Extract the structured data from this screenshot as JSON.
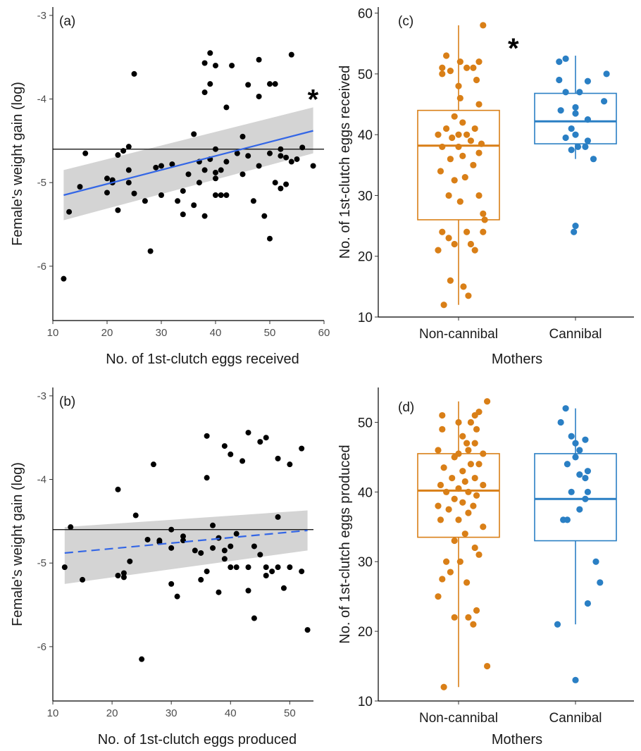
{
  "chart_data": [
    {
      "panel": "(a)",
      "type": "scatter",
      "xlabel": "No. of 1st-clutch eggs received",
      "ylabel": "Female's weight gain (log)",
      "xlim": [
        10,
        60
      ],
      "ylim": [
        -6.65,
        -2.9
      ],
      "xticks": [
        10,
        20,
        30,
        40,
        50,
        60
      ],
      "yticks": [
        -6,
        -5,
        -4,
        -3
      ],
      "hline": -4.6,
      "fit": {
        "x": [
          12,
          58
        ],
        "y": [
          -5.15,
          -4.38
        ],
        "ci_low": [
          -5.45,
          -4.65
        ],
        "ci_high": [
          -4.85,
          -4.1
        ],
        "dashed": false
      },
      "significance": "*",
      "points": [
        [
          12,
          -6.15
        ],
        [
          13,
          -5.35
        ],
        [
          15,
          -5.05
        ],
        [
          16,
          -4.65
        ],
        [
          20,
          -4.95
        ],
        [
          20,
          -5.12
        ],
        [
          21,
          -5.0
        ],
        [
          21,
          -4.97
        ],
        [
          22,
          -5.33
        ],
        [
          22,
          -4.67
        ],
        [
          23,
          -4.62
        ],
        [
          24,
          -4.57
        ],
        [
          24,
          -4.85
        ],
        [
          24,
          -5.0
        ],
        [
          25,
          -3.7
        ],
        [
          25,
          -5.13
        ],
        [
          27,
          -5.22
        ],
        [
          28,
          -5.82
        ],
        [
          29,
          -4.82
        ],
        [
          30,
          -5.15
        ],
        [
          30,
          -4.8
        ],
        [
          32,
          -4.78
        ],
        [
          33,
          -5.22
        ],
        [
          34,
          -5.1
        ],
        [
          34,
          -5.38
        ],
        [
          35,
          -4.9
        ],
        [
          36,
          -4.42
        ],
        [
          36,
          -5.27
        ],
        [
          37,
          -4.75
        ],
        [
          37,
          -5.0
        ],
        [
          38,
          -4.85
        ],
        [
          38,
          -5.4
        ],
        [
          38,
          -3.92
        ],
        [
          38,
          -3.57
        ],
        [
          39,
          -3.45
        ],
        [
          39,
          -3.82
        ],
        [
          39,
          -4.72
        ],
        [
          40,
          -5.15
        ],
        [
          40,
          -3.6
        ],
        [
          40,
          -4.6
        ],
        [
          40,
          -4.88
        ],
        [
          40,
          -4.95
        ],
        [
          41,
          -5.15
        ],
        [
          41,
          -4.85
        ],
        [
          42,
          -4.1
        ],
        [
          42,
          -4.75
        ],
        [
          42,
          -5.15
        ],
        [
          43,
          -3.6
        ],
        [
          44,
          -4.65
        ],
        [
          45,
          -4.45
        ],
        [
          45,
          -4.9
        ],
        [
          46,
          -3.83
        ],
        [
          46,
          -4.68
        ],
        [
          47,
          -5.22
        ],
        [
          48,
          -4.8
        ],
        [
          48,
          -3.53
        ],
        [
          48,
          -3.97
        ],
        [
          49,
          -5.4
        ],
        [
          50,
          -3.82
        ],
        [
          50,
          -5.67
        ],
        [
          50,
          -4.65
        ],
        [
          51,
          -3.82
        ],
        [
          51,
          -5.0
        ],
        [
          52,
          -5.07
        ],
        [
          52,
          -4.6
        ],
        [
          52,
          -4.68
        ],
        [
          53,
          -4.7
        ],
        [
          53,
          -5.02
        ],
        [
          54,
          -3.47
        ],
        [
          54,
          -4.75
        ],
        [
          55,
          -4.72
        ],
        [
          56,
          -4.58
        ],
        [
          58,
          -4.8
        ]
      ]
    },
    {
      "panel": "(b)",
      "type": "scatter",
      "xlabel": "No. of 1st-clutch eggs produced",
      "ylabel": "Female's weight gain (log)",
      "xlim": [
        10,
        54
      ],
      "ylim": [
        -6.65,
        -2.9
      ],
      "xticks": [
        10,
        20,
        30,
        40,
        50
      ],
      "yticks": [
        -6,
        -5,
        -4,
        -3
      ],
      "hline": -4.6,
      "fit": {
        "x": [
          12,
          53
        ],
        "y": [
          -4.88,
          -4.61
        ],
        "ci_low": [
          -5.25,
          -4.85
        ],
        "ci_high": [
          -4.57,
          -4.37
        ],
        "dashed": true
      },
      "points": [
        [
          12,
          -5.05
        ],
        [
          13,
          -4.57
        ],
        [
          15,
          -5.2
        ],
        [
          21,
          -4.12
        ],
        [
          21,
          -5.15
        ],
        [
          22,
          -5.12
        ],
        [
          22,
          -5.17
        ],
        [
          23,
          -4.98
        ],
        [
          24,
          -4.43
        ],
        [
          25,
          -6.15
        ],
        [
          26,
          -4.72
        ],
        [
          27,
          -3.82
        ],
        [
          28,
          -4.75
        ],
        [
          28,
          -4.73
        ],
        [
          30,
          -4.6
        ],
        [
          30,
          -4.82
        ],
        [
          30,
          -5.25
        ],
        [
          31,
          -5.4
        ],
        [
          32,
          -4.73
        ],
        [
          32,
          -4.68
        ],
        [
          34,
          -4.85
        ],
        [
          35,
          -4.88
        ],
        [
          35,
          -5.2
        ],
        [
          36,
          -3.48
        ],
        [
          36,
          -3.98
        ],
        [
          36,
          -5.1
        ],
        [
          37,
          -4.55
        ],
        [
          37,
          -4.82
        ],
        [
          38,
          -4.7
        ],
        [
          38,
          -5.35
        ],
        [
          39,
          -3.6
        ],
        [
          39,
          -4.85
        ],
        [
          39,
          -4.95
        ],
        [
          40,
          -3.7
        ],
        [
          40,
          -4.8
        ],
        [
          40,
          -5.05
        ],
        [
          41,
          -4.65
        ],
        [
          41,
          -5.05
        ],
        [
          42,
          -3.78
        ],
        [
          43,
          -3.44
        ],
        [
          43,
          -5.33
        ],
        [
          43,
          -5.05
        ],
        [
          44,
          -5.66
        ],
        [
          44,
          -4.8
        ],
        [
          45,
          -3.55
        ],
        [
          45,
          -4.9
        ],
        [
          46,
          -3.5
        ],
        [
          46,
          -5.15
        ],
        [
          46,
          -5.05
        ],
        [
          47,
          -5.1
        ],
        [
          48,
          -3.75
        ],
        [
          48,
          -5.05
        ],
        [
          48,
          -4.45
        ],
        [
          49,
          -5.3
        ],
        [
          50,
          -3.82
        ],
        [
          50,
          -5.05
        ],
        [
          52,
          -3.63
        ],
        [
          52,
          -5.1
        ],
        [
          53,
          -5.8
        ]
      ]
    },
    {
      "panel": "(c)",
      "type": "box",
      "xlabel": "Mothers",
      "ylabel": "No. of 1st-clutch eggs received",
      "categories": [
        "Non-cannibal",
        "Cannibal"
      ],
      "colors": [
        "#D97F17",
        "#2A7FC4"
      ],
      "ylim": [
        10,
        61
      ],
      "yticks": [
        10,
        20,
        30,
        40,
        50,
        60
      ],
      "significance": "*",
      "boxes": [
        {
          "min": 12,
          "q1": 26,
          "median": 38.2,
          "q3": 44,
          "max": 58
        },
        {
          "min": 36,
          "q1": 38.5,
          "median": 42.2,
          "q3": 46.8,
          "max": 53
        }
      ],
      "points": [
        [
          [
            -0.18,
            12
          ],
          [
            0.12,
            13.5
          ],
          [
            -0.1,
            16
          ],
          [
            0.06,
            15
          ],
          [
            -0.25,
            21
          ],
          [
            0.15,
            22
          ],
          [
            -0.2,
            24
          ],
          [
            0.1,
            24
          ],
          [
            0.3,
            24
          ],
          [
            -0.05,
            22
          ],
          [
            0.2,
            21
          ],
          [
            -0.12,
            23
          ],
          [
            0.32,
            26
          ],
          [
            0.3,
            27
          ],
          [
            0.02,
            29
          ],
          [
            -0.12,
            30
          ],
          [
            0.25,
            30
          ],
          [
            -0.05,
            32.5
          ],
          [
            0.08,
            33
          ],
          [
            0.18,
            35
          ],
          [
            -0.22,
            34
          ],
          [
            -0.1,
            36
          ],
          [
            0.05,
            36.5
          ],
          [
            0.25,
            37
          ],
          [
            -0.2,
            38
          ],
          [
            0.0,
            38
          ],
          [
            0.15,
            39
          ],
          [
            -0.08,
            39.5
          ],
          [
            0.1,
            40
          ],
          [
            -0.25,
            40
          ],
          [
            0.28,
            38.5
          ],
          [
            0.0,
            40
          ],
          [
            -0.15,
            41
          ],
          [
            0.2,
            41
          ],
          [
            0.05,
            42
          ],
          [
            -0.05,
            43
          ],
          [
            0.25,
            45
          ],
          [
            0.02,
            46
          ],
          [
            0.0,
            48
          ],
          [
            -0.2,
            50
          ],
          [
            -0.1,
            50.5
          ],
          [
            0.1,
            51
          ],
          [
            0.18,
            51
          ],
          [
            0.22,
            49
          ],
          [
            0.25,
            52
          ],
          [
            -0.15,
            53
          ],
          [
            -0.2,
            51
          ],
          [
            0.02,
            52
          ],
          [
            0.3,
            58
          ]
        ],
        [
          [
            -0.02,
            24
          ],
          [
            0.0,
            25
          ],
          [
            0.22,
            36
          ],
          [
            -0.05,
            37.5
          ],
          [
            0.03,
            38
          ],
          [
            0.12,
            38
          ],
          [
            0.15,
            39
          ],
          [
            -0.12,
            39.5
          ],
          [
            0.0,
            40
          ],
          [
            -0.05,
            41
          ],
          [
            0.15,
            42.5
          ],
          [
            0.0,
            43.5
          ],
          [
            -0.18,
            44
          ],
          [
            0.0,
            44.5
          ],
          [
            0.35,
            45.5
          ],
          [
            -0.12,
            47
          ],
          [
            0.05,
            47
          ],
          [
            -0.2,
            49
          ],
          [
            0.15,
            48.8
          ],
          [
            0.38,
            50
          ],
          [
            -0.2,
            52
          ],
          [
            -0.12,
            52.5
          ]
        ]
      ]
    },
    {
      "panel": "(d)",
      "type": "box",
      "xlabel": "Mothers",
      "ylabel": "No. of 1st-clutch eggs produced",
      "categories": [
        "Non-cannibal",
        "Cannibal"
      ],
      "colors": [
        "#D97F17",
        "#2A7FC4"
      ],
      "ylim": [
        10,
        55
      ],
      "yticks": [
        10,
        20,
        30,
        40,
        50
      ],
      "boxes": [
        {
          "min": 12,
          "q1": 33.5,
          "median": 40.2,
          "q3": 45.5,
          "max": 53
        },
        {
          "min": 21,
          "q1": 33,
          "median": 39,
          "q3": 45.5,
          "max": 52
        }
      ],
      "points": [
        [
          [
            -0.18,
            12
          ],
          [
            0.35,
            15
          ],
          [
            -0.05,
            22
          ],
          [
            0.22,
            23
          ],
          [
            0.12,
            22
          ],
          [
            0.18,
            21
          ],
          [
            -0.25,
            25
          ],
          [
            -0.2,
            27.5
          ],
          [
            0.1,
            27
          ],
          [
            -0.1,
            28.5
          ],
          [
            -0.15,
            30
          ],
          [
            0.02,
            30
          ],
          [
            0.25,
            31
          ],
          [
            0.2,
            32
          ],
          [
            -0.05,
            33
          ],
          [
            0.08,
            34
          ],
          [
            0.3,
            35
          ],
          [
            -0.22,
            36
          ],
          [
            0.0,
            36
          ],
          [
            0.12,
            37
          ],
          [
            -0.12,
            37.5
          ],
          [
            0.18,
            38
          ],
          [
            -0.25,
            38
          ],
          [
            0.05,
            38.5
          ],
          [
            -0.05,
            39
          ],
          [
            0.22,
            39.5
          ],
          [
            -0.15,
            40
          ],
          [
            0.12,
            40
          ],
          [
            0.0,
            40.5
          ],
          [
            -0.22,
            41
          ],
          [
            0.3,
            41
          ],
          [
            0.08,
            41.5
          ],
          [
            -0.08,
            42
          ],
          [
            0.2,
            42
          ],
          [
            0.05,
            43
          ],
          [
            -0.18,
            43.5
          ],
          [
            0.15,
            44
          ],
          [
            0.25,
            44
          ],
          [
            -0.05,
            45
          ],
          [
            0.0,
            45.5
          ],
          [
            0.12,
            46
          ],
          [
            0.3,
            45.5
          ],
          [
            -0.25,
            46
          ],
          [
            0.1,
            47
          ],
          [
            0.2,
            47
          ],
          [
            0.05,
            48
          ],
          [
            -0.2,
            49
          ],
          [
            0.22,
            49
          ],
          [
            0.0,
            50
          ],
          [
            0.15,
            50
          ],
          [
            0.2,
            51
          ],
          [
            0.25,
            51.5
          ],
          [
            0.35,
            53
          ],
          [
            -0.2,
            51
          ]
        ],
        [
          [
            -0.22,
            21
          ],
          [
            0.0,
            13
          ],
          [
            0.15,
            24
          ],
          [
            0.3,
            27
          ],
          [
            0.25,
            30
          ],
          [
            -0.15,
            36
          ],
          [
            -0.1,
            36
          ],
          [
            0.05,
            37.5
          ],
          [
            0.12,
            39
          ],
          [
            -0.05,
            40
          ],
          [
            0.15,
            40
          ],
          [
            0.12,
            42
          ],
          [
            0.05,
            42.5
          ],
          [
            0.15,
            43
          ],
          [
            -0.1,
            44
          ],
          [
            0.0,
            45
          ],
          [
            0.05,
            46
          ],
          [
            0.0,
            47
          ],
          [
            0.12,
            47.5
          ],
          [
            -0.05,
            48
          ],
          [
            -0.18,
            50
          ],
          [
            -0.12,
            52
          ]
        ]
      ]
    }
  ]
}
